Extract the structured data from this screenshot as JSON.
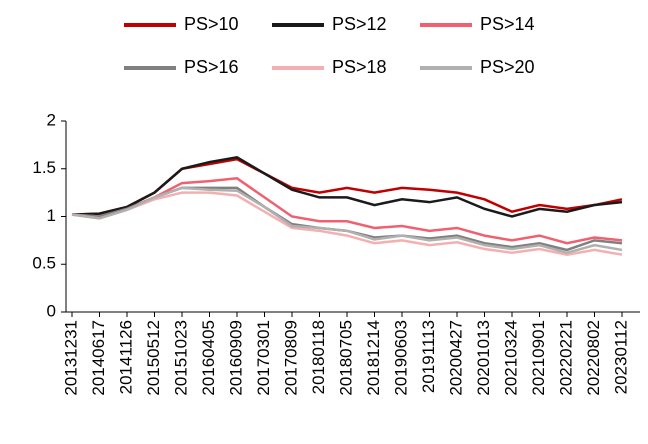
{
  "chart_data": {
    "type": "line",
    "categories": [
      "20131231",
      "20140617",
      "20141126",
      "20150512",
      "20151023",
      "20160405",
      "20160909",
      "20170301",
      "20170809",
      "20180118",
      "20180705",
      "20181214",
      "20190603",
      "20191113",
      "20200427",
      "20201013",
      "20210324",
      "20210901",
      "20220221",
      "20220802",
      "20230112"
    ],
    "series": [
      {
        "name": "PS>10",
        "color": "#c00000",
        "values": [
          1.02,
          1.03,
          1.1,
          1.25,
          1.5,
          1.55,
          1.6,
          1.45,
          1.3,
          1.25,
          1.3,
          1.25,
          1.3,
          1.28,
          1.25,
          1.18,
          1.05,
          1.12,
          1.08,
          1.12,
          1.18
        ]
      },
      {
        "name": "PS>12",
        "color": "#1a1a1a",
        "values": [
          1.02,
          1.03,
          1.1,
          1.25,
          1.5,
          1.57,
          1.62,
          1.45,
          1.28,
          1.2,
          1.2,
          1.12,
          1.18,
          1.15,
          1.2,
          1.08,
          1.0,
          1.08,
          1.05,
          1.12,
          1.15
        ]
      },
      {
        "name": "PS>14",
        "color": "#f06070",
        "values": [
          1.02,
          1.0,
          1.08,
          1.2,
          1.35,
          1.37,
          1.4,
          1.2,
          1.0,
          0.95,
          0.95,
          0.88,
          0.9,
          0.85,
          0.88,
          0.8,
          0.75,
          0.8,
          0.72,
          0.78,
          0.75
        ]
      },
      {
        "name": "PS>16",
        "color": "#808080",
        "values": [
          1.02,
          1.0,
          1.08,
          1.2,
          1.3,
          1.3,
          1.3,
          1.1,
          0.92,
          0.88,
          0.85,
          0.78,
          0.8,
          0.77,
          0.8,
          0.72,
          0.68,
          0.72,
          0.65,
          0.75,
          0.72
        ]
      },
      {
        "name": "PS>18",
        "color": "#f4b0b0",
        "values": [
          1.02,
          0.98,
          1.07,
          1.18,
          1.25,
          1.25,
          1.22,
          1.05,
          0.88,
          0.85,
          0.8,
          0.72,
          0.75,
          0.7,
          0.73,
          0.66,
          0.62,
          0.66,
          0.6,
          0.65,
          0.6
        ]
      },
      {
        "name": "PS>20",
        "color": "#b0b0b0",
        "values": [
          1.02,
          0.98,
          1.07,
          1.2,
          1.3,
          1.28,
          1.27,
          1.1,
          0.9,
          0.88,
          0.85,
          0.76,
          0.8,
          0.75,
          0.78,
          0.7,
          0.66,
          0.7,
          0.62,
          0.7,
          0.65
        ]
      }
    ],
    "ylim": [
      0,
      2
    ],
    "yticks": [
      0,
      0.5,
      1,
      1.5,
      2
    ],
    "grid": false
  }
}
